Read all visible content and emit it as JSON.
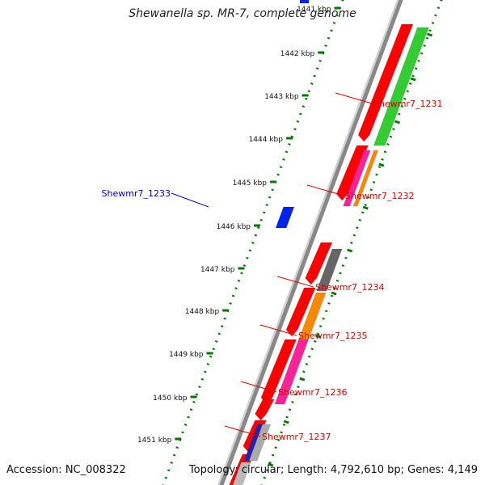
{
  "title": "Shewanella sp. MR-7, complete genome",
  "footer": {
    "accession": "Accession: NC_008322",
    "summary": "Topology: circular; Length: 4,792,610 bp; Genes: 4,149"
  },
  "colors": {
    "cds": "#ff0000",
    "label_red": "#dd0000",
    "label_blue": "#0000cc",
    "gene_blue": "#0022ee",
    "backbone": "#888888",
    "tick": "#007700",
    "green": "#33cc33",
    "magenta": "#ff2299",
    "orange": "#ff8800",
    "gray": "#666666",
    "navy": "#2222aa"
  },
  "ruler_ticks": [
    {
      "label": "1441 kbp"
    },
    {
      "label": "1442 kbp"
    },
    {
      "label": "1443 kbp"
    },
    {
      "label": "1444 kbp"
    },
    {
      "label": "1445 kbp"
    },
    {
      "label": "1446 kbp"
    },
    {
      "label": "1447 kbp"
    },
    {
      "label": "1448 kbp"
    },
    {
      "label": "1449 kbp"
    },
    {
      "label": "1450 kbp"
    },
    {
      "label": "1451 kbp"
    }
  ],
  "gene_labels": [
    {
      "name": "Shewmr7_1231"
    },
    {
      "name": "Shewmr7_1232"
    },
    {
      "name": "Shewmr7_1233"
    },
    {
      "name": "Shewmr7_1234"
    },
    {
      "name": "Shewmr7_1235"
    },
    {
      "name": "Shewmr7_1236"
    },
    {
      "name": "Shewmr7_1237"
    }
  ]
}
